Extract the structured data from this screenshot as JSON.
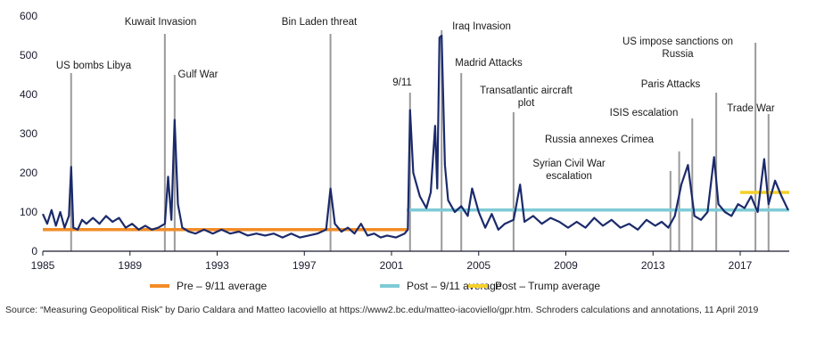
{
  "chart_data": {
    "type": "line",
    "title": "",
    "xlabel": "",
    "ylabel": "",
    "xlim": [
      1985,
      2019.25
    ],
    "ylim": [
      0,
      600
    ],
    "grid": false,
    "x_ticks": [
      {
        "value": 1985,
        "label": "1985"
      },
      {
        "value": 1989,
        "label": "1989"
      },
      {
        "value": 1993,
        "label": "1993"
      },
      {
        "value": 1997,
        "label": "1997"
      },
      {
        "value": 2001,
        "label": "2001"
      },
      {
        "value": 2005,
        "label": "2005"
      },
      {
        "value": 2009,
        "label": "2009"
      },
      {
        "value": 2013,
        "label": "2013"
      },
      {
        "value": 2017,
        "label": "2017"
      }
    ],
    "y_ticks": [
      {
        "value": 0,
        "label": "0"
      },
      {
        "value": 100,
        "label": "100"
      },
      {
        "value": 200,
        "label": "200"
      },
      {
        "value": 300,
        "label": "300"
      },
      {
        "value": 400,
        "label": "400"
      },
      {
        "value": 500,
        "label": "500"
      },
      {
        "value": 600,
        "label": "600"
      }
    ],
    "series": [
      {
        "color": "#1b2a6b",
        "points": [
          [
            1985.0,
            95
          ],
          [
            1985.2,
            70
          ],
          [
            1985.4,
            105
          ],
          [
            1985.6,
            65
          ],
          [
            1985.8,
            100
          ],
          [
            1986.0,
            60
          ],
          [
            1986.2,
            90
          ],
          [
            1986.3,
            215
          ],
          [
            1986.4,
            60
          ],
          [
            1986.6,
            55
          ],
          [
            1986.8,
            80
          ],
          [
            1987.0,
            70
          ],
          [
            1987.3,
            85
          ],
          [
            1987.6,
            70
          ],
          [
            1987.9,
            90
          ],
          [
            1988.2,
            75
          ],
          [
            1988.5,
            85
          ],
          [
            1988.8,
            60
          ],
          [
            1989.1,
            70
          ],
          [
            1989.4,
            55
          ],
          [
            1989.7,
            65
          ],
          [
            1990.0,
            55
          ],
          [
            1990.3,
            60
          ],
          [
            1990.6,
            70
          ],
          [
            1990.75,
            190
          ],
          [
            1990.9,
            80
          ],
          [
            1991.05,
            335
          ],
          [
            1991.2,
            120
          ],
          [
            1991.4,
            60
          ],
          [
            1991.7,
            50
          ],
          [
            1992.0,
            45
          ],
          [
            1992.4,
            55
          ],
          [
            1992.8,
            45
          ],
          [
            1993.2,
            55
          ],
          [
            1993.6,
            45
          ],
          [
            1994.0,
            50
          ],
          [
            1994.4,
            40
          ],
          [
            1994.8,
            45
          ],
          [
            1995.2,
            40
          ],
          [
            1995.6,
            45
          ],
          [
            1996.0,
            35
          ],
          [
            1996.4,
            45
          ],
          [
            1996.8,
            35
          ],
          [
            1997.2,
            40
          ],
          [
            1997.6,
            45
          ],
          [
            1998.0,
            55
          ],
          [
            1998.2,
            160
          ],
          [
            1998.4,
            70
          ],
          [
            1998.7,
            50
          ],
          [
            1999.0,
            60
          ],
          [
            1999.3,
            45
          ],
          [
            1999.6,
            70
          ],
          [
            1999.9,
            40
          ],
          [
            2000.2,
            45
          ],
          [
            2000.5,
            35
          ],
          [
            2000.8,
            40
          ],
          [
            2001.2,
            35
          ],
          [
            2001.6,
            45
          ],
          [
            2001.75,
            55
          ],
          [
            2001.85,
            360
          ],
          [
            2002.0,
            200
          ],
          [
            2002.3,
            140
          ],
          [
            2002.6,
            110
          ],
          [
            2002.8,
            150
          ],
          [
            2003.0,
            320
          ],
          [
            2003.1,
            160
          ],
          [
            2003.2,
            545
          ],
          [
            2003.3,
            550
          ],
          [
            2003.45,
            220
          ],
          [
            2003.6,
            130
          ],
          [
            2003.9,
            100
          ],
          [
            2004.2,
            115
          ],
          [
            2004.5,
            90
          ],
          [
            2004.7,
            160
          ],
          [
            2005.0,
            100
          ],
          [
            2005.3,
            60
          ],
          [
            2005.6,
            95
          ],
          [
            2005.9,
            55
          ],
          [
            2006.2,
            70
          ],
          [
            2006.6,
            80
          ],
          [
            2006.9,
            170
          ],
          [
            2007.1,
            75
          ],
          [
            2007.5,
            90
          ],
          [
            2007.9,
            70
          ],
          [
            2008.3,
            85
          ],
          [
            2008.7,
            75
          ],
          [
            2009.1,
            60
          ],
          [
            2009.5,
            75
          ],
          [
            2009.9,
            60
          ],
          [
            2010.3,
            85
          ],
          [
            2010.7,
            65
          ],
          [
            2011.1,
            80
          ],
          [
            2011.5,
            60
          ],
          [
            2011.9,
            70
          ],
          [
            2012.3,
            55
          ],
          [
            2012.7,
            80
          ],
          [
            2013.1,
            65
          ],
          [
            2013.4,
            75
          ],
          [
            2013.7,
            60
          ],
          [
            2014.0,
            90
          ],
          [
            2014.3,
            170
          ],
          [
            2014.6,
            220
          ],
          [
            2014.9,
            90
          ],
          [
            2015.2,
            80
          ],
          [
            2015.5,
            100
          ],
          [
            2015.8,
            240
          ],
          [
            2016.0,
            120
          ],
          [
            2016.3,
            100
          ],
          [
            2016.6,
            90
          ],
          [
            2016.9,
            120
          ],
          [
            2017.2,
            110
          ],
          [
            2017.5,
            140
          ],
          [
            2017.8,
            100
          ],
          [
            2018.1,
            235
          ],
          [
            2018.3,
            120
          ],
          [
            2018.6,
            180
          ],
          [
            2018.9,
            140
          ],
          [
            2019.2,
            105
          ]
        ]
      }
    ],
    "averages": [
      {
        "name": "Pre – 9/11 average",
        "color": "#f28c28",
        "x_start": 1985,
        "x_end": 2001.7,
        "value": 55
      },
      {
        "name": "Post – 9/11 average",
        "color": "#7ecbd6",
        "x_start": 2001.7,
        "x_end": 2019.25,
        "value": 105
      },
      {
        "name": "Post – Trump average",
        "color": "#f5d02a",
        "x_start": 2017.0,
        "x_end": 2019.25,
        "value": 150
      }
    ],
    "annotations": [
      {
        "lines": [
          "US bombs Libya"
        ],
        "x": 1986.3
      },
      {
        "lines": [
          "Kuwait Invasion"
        ],
        "x": 1990.6
      },
      {
        "lines": [
          "Gulf War"
        ],
        "x": 1991.05
      },
      {
        "lines": [
          "Bin Laden threat"
        ],
        "x": 1998.2
      },
      {
        "lines": [
          "9/11"
        ],
        "x": 2001.85
      },
      {
        "lines": [
          "Iraq Invasion"
        ],
        "x": 2003.3
      },
      {
        "lines": [
          "Madrid Attacks"
        ],
        "x": 2004.2
      },
      {
        "lines": [
          "Transatlantic aircraft",
          "plot"
        ],
        "x": 2006.6
      },
      {
        "lines": [
          "Syrian Civil War",
          "escalation"
        ],
        "x": 2013.8
      },
      {
        "lines": [
          "Russia annexes Crimea"
        ],
        "x": 2014.2
      },
      {
        "lines": [
          "ISIS escalation"
        ],
        "x": 2014.8
      },
      {
        "lines": [
          "Paris Attacks"
        ],
        "x": 2015.9
      },
      {
        "lines": [
          "US impose sanctions on",
          "Russia"
        ],
        "x": 2017.7
      },
      {
        "lines": [
          "Trade War"
        ],
        "x": 2018.3
      }
    ]
  },
  "source_note": "Source: “Measuring Geopolitical Risk” by Dario Caldara and Matteo Iacoviello at https://www2.bc.edu/matteo-iacoviello/gpr.htm. Schroders calculations and annotations, 11 April 2019"
}
